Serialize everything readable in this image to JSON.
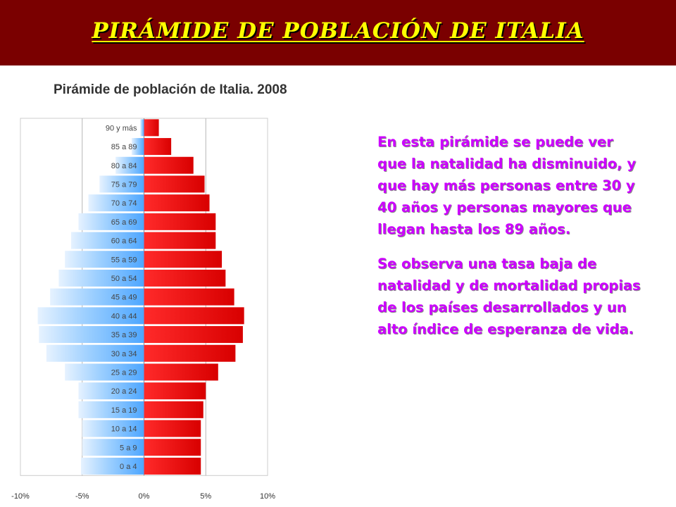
{
  "slide": {
    "title": "PIRÁMIDE DE POBLACIÓN DE ITALIA",
    "paragraphs": [
      "En esta pirámide se puede ver que la natalidad ha disminuido, y que hay más personas entre 30 y 40 años y personas mayores que llegan hasta los 89 años.",
      "Se observa una tasa baja de natalidad y de mortalidad propias de los países desarrollados y un alto índice de esperanza de vida."
    ]
  },
  "colors": {
    "header_bg": "#7a0000",
    "title": "#ffff00",
    "text": "#cc00ff",
    "male_bar": "#4da6ff",
    "female_bar": "#ee1111"
  },
  "chart_data": {
    "type": "bar",
    "orientation": "horizontal",
    "title": "Pirámide de población de Italia. 2008",
    "categories": [
      "90 y más",
      "85 a 89",
      "80 a 84",
      "75 a 79",
      "70 a 74",
      "65 a 69",
      "60 a 64",
      "55 a 59",
      "50 a 54",
      "45 a 49",
      "40 a 44",
      "35 a 39",
      "30 a 34",
      "25 a 29",
      "20 a 24",
      "15 a 19",
      "10 a 14",
      "5 a 9",
      "0 a 4"
    ],
    "series": [
      {
        "values": [
          -0.3,
          -1.0,
          -2.3,
          -3.6,
          -4.5,
          -5.3,
          -5.9,
          -6.4,
          -6.9,
          -7.6,
          -8.6,
          -8.5,
          -7.9,
          -6.4,
          -5.3,
          -5.3,
          -5.0,
          -5.0,
          -5.1
        ]
      },
      {
        "values": [
          1.2,
          2.2,
          4.0,
          4.9,
          5.3,
          5.8,
          5.8,
          6.3,
          6.6,
          7.3,
          8.1,
          8.0,
          7.4,
          6.0,
          5.0,
          4.8,
          4.6,
          4.6,
          4.6
        ]
      }
    ],
    "xlim": [
      -10,
      10
    ],
    "x_ticks": [
      "-10%",
      "-5%",
      "0%",
      "5%",
      "10%"
    ],
    "grid": true
  }
}
